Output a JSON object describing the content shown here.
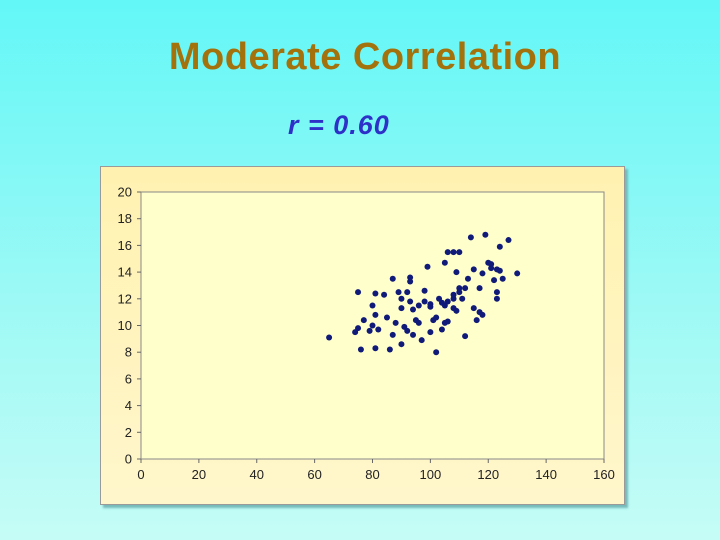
{
  "page": {
    "title": "Moderate Correlation",
    "subtitle": "r = 0.60"
  },
  "colors": {
    "title": "#a4720c",
    "subtitle": "#2e31c8",
    "points": "#101a78",
    "plot_background": "#ffffcc"
  },
  "chart_data": {
    "type": "scatter",
    "title": "",
    "xlabel": "",
    "ylabel": "",
    "xlim": [
      0,
      160
    ],
    "ylim": [
      0,
      20
    ],
    "x_ticks": [
      "0",
      "20",
      "40",
      "60",
      "80",
      "100",
      "120",
      "140",
      "160"
    ],
    "y_ticks": [
      "0",
      "2",
      "4",
      "6",
      "8",
      "10",
      "12",
      "14",
      "16",
      "18",
      "20"
    ],
    "grid": false,
    "legend": "none",
    "points": [
      [
        65,
        9.1
      ],
      [
        74,
        9.5
      ],
      [
        75,
        12.5
      ],
      [
        75,
        9.8
      ],
      [
        76,
        8.2
      ],
      [
        77,
        10.4
      ],
      [
        79,
        9.6
      ],
      [
        80,
        10.0
      ],
      [
        80,
        11.5
      ],
      [
        81,
        8.3
      ],
      [
        81,
        10.8
      ],
      [
        81,
        12.4
      ],
      [
        82,
        9.7
      ],
      [
        84,
        12.3
      ],
      [
        85,
        10.6
      ],
      [
        86,
        8.2
      ],
      [
        87,
        13.5
      ],
      [
        87,
        9.3
      ],
      [
        88,
        10.2
      ],
      [
        89,
        12.5
      ],
      [
        90,
        12.0
      ],
      [
        90,
        11.3
      ],
      [
        90,
        8.6
      ],
      [
        91,
        9.9
      ],
      [
        92,
        9.6
      ],
      [
        92,
        12.5
      ],
      [
        93,
        13.6
      ],
      [
        93,
        11.8
      ],
      [
        93,
        13.3
      ],
      [
        94,
        11.2
      ],
      [
        94,
        9.3
      ],
      [
        95,
        10.4
      ],
      [
        96,
        10.2
      ],
      [
        96,
        11.5
      ],
      [
        97,
        8.9
      ],
      [
        98,
        11.8
      ],
      [
        98,
        12.6
      ],
      [
        99,
        14.4
      ],
      [
        100,
        11.4
      ],
      [
        100,
        9.5
      ],
      [
        100,
        11.6
      ],
      [
        101,
        10.4
      ],
      [
        102,
        8.0
      ],
      [
        102,
        10.6
      ],
      [
        103,
        12.0
      ],
      [
        104,
        11.7
      ],
      [
        104,
        9.7
      ],
      [
        105,
        11.5
      ],
      [
        105,
        14.7
      ],
      [
        105,
        10.2
      ],
      [
        106,
        15.5
      ],
      [
        106,
        11.8
      ],
      [
        106,
        10.3
      ],
      [
        108,
        15.5
      ],
      [
        108,
        12.3
      ],
      [
        108,
        12.0
      ],
      [
        108,
        11.3
      ],
      [
        109,
        14.0
      ],
      [
        109,
        11.1
      ],
      [
        110,
        12.5
      ],
      [
        110,
        15.5
      ],
      [
        110,
        12.8
      ],
      [
        111,
        12.0
      ],
      [
        112,
        12.8
      ],
      [
        112,
        9.2
      ],
      [
        113,
        13.5
      ],
      [
        114,
        16.6
      ],
      [
        115,
        14.2
      ],
      [
        115,
        11.3
      ],
      [
        116,
        10.4
      ],
      [
        117,
        12.8
      ],
      [
        117,
        11.0
      ],
      [
        118,
        13.9
      ],
      [
        118,
        10.8
      ],
      [
        119,
        16.8
      ],
      [
        120,
        14.7
      ],
      [
        121,
        14.3
      ],
      [
        121,
        14.6
      ],
      [
        122,
        13.4
      ],
      [
        123,
        14.2
      ],
      [
        123,
        12.0
      ],
      [
        123,
        12.5
      ],
      [
        124,
        15.9
      ],
      [
        124,
        14.1
      ],
      [
        125,
        13.5
      ],
      [
        127,
        16.4
      ],
      [
        130,
        13.9
      ]
    ]
  }
}
